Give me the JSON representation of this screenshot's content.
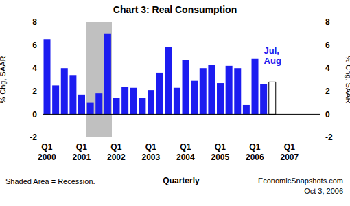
{
  "chart_data": {
    "type": "bar",
    "title": "Chart 3: Real Consumption",
    "x_label": "Quarterly",
    "y_label": "% Chg, SAAR",
    "y2_label": "% Chg, SAAR",
    "categories": [
      "Q1 2000",
      null,
      null,
      null,
      "Q1 2001",
      null,
      null,
      null,
      "Q1 2002",
      null,
      null,
      null,
      "Q1 2003",
      null,
      null,
      null,
      "Q1 2004",
      null,
      null,
      null,
      "Q1 2005",
      null,
      null,
      null,
      "Q1 2006",
      null,
      null,
      null,
      "Q1 2007",
      null,
      null,
      null
    ],
    "values": [
      6.5,
      2.5,
      4.0,
      3.4,
      1.7,
      1.0,
      1.8,
      7.0,
      1.4,
      2.4,
      2.3,
      1.4,
      2.1,
      3.6,
      5.8,
      2.3,
      4.7,
      2.9,
      4.0,
      4.3,
      2.7,
      4.2,
      4.0,
      0.8,
      4.8,
      2.6,
      2.8,
      null,
      null,
      null,
      null,
      null
    ],
    "colors": [
      "#1c1cf0",
      "#1c1cf0",
      "#1c1cf0",
      "#1c1cf0",
      "#1c1cf0",
      "#1c1cf0",
      "#1c1cf0",
      "#1c1cf0",
      "#1c1cf0",
      "#1c1cf0",
      "#1c1cf0",
      "#1c1cf0",
      "#1c1cf0",
      "#1c1cf0",
      "#1c1cf0",
      "#1c1cf0",
      "#1c1cf0",
      "#1c1cf0",
      "#1c1cf0",
      "#1c1cf0",
      "#1c1cf0",
      "#1c1cf0",
      "#1c1cf0",
      "#1c1cf0",
      "#1c1cf0",
      "#1c1cf0",
      "#ffffff"
    ],
    "ylim": [
      -2,
      8
    ],
    "yticks": [
      -2,
      0,
      2,
      4,
      6,
      8
    ],
    "y2lim": [
      -2,
      8
    ],
    "y2ticks": [
      -2,
      0,
      2,
      4,
      6,
      8
    ],
    "grid": false,
    "annotations": [
      {
        "text": "Jul, Aug",
        "index": 26,
        "color": "#1c1cf0"
      }
    ],
    "shaded": {
      "label": "Shaded Area = Recession.",
      "from": 5,
      "to": 7,
      "color": "#c0c0c0"
    },
    "source": "EconomicSnapshots.com",
    "date": "Oct 3, 2006"
  }
}
